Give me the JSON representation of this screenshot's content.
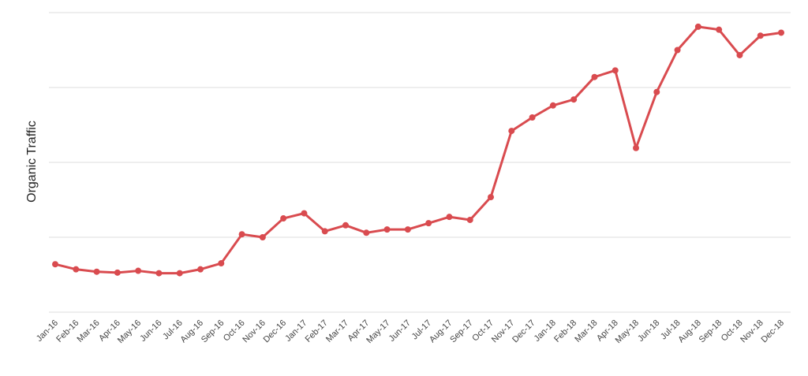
{
  "chart_data": {
    "type": "line",
    "ylabel": "Organic Traffic",
    "xlabel": "",
    "title": "",
    "grid": "horizontal",
    "ylim": [
      0,
      100
    ],
    "categories": [
      "Jan-16",
      "Feb-16",
      "Mar-16",
      "Apr-16",
      "May-16",
      "Jun-16",
      "Jul-16",
      "Aug-16",
      "Sep-16",
      "Oct-16",
      "Nov-16",
      "Dec-16",
      "Jan-17",
      "Feb-17",
      "Mar-17",
      "Apr-17",
      "May-17",
      "Jun-17",
      "Jul-17",
      "Aug-17",
      "Sep-17",
      "Oct-17",
      "Nov-17",
      "Dec-17",
      "Jan-18",
      "Feb-18",
      "Mar-18",
      "Apr-18",
      "May-18",
      "Jun-18",
      "Jul-18",
      "Aug-18",
      "Sep-18",
      "Oct-18",
      "Nov-18",
      "Dec-18"
    ],
    "values": [
      16,
      14.3,
      13.5,
      13.2,
      13.8,
      13,
      13,
      14.3,
      16.3,
      26,
      25,
      31.3,
      33,
      27,
      29,
      26.5,
      27.6,
      27.6,
      29.7,
      31.8,
      30.8,
      38.4,
      60.5,
      65,
      69,
      71,
      78.5,
      80.7,
      54.8,
      73.5,
      87.5,
      95.3,
      94.3,
      85.8,
      92.3,
      93.3
    ],
    "series_color": "#d94b4f"
  }
}
